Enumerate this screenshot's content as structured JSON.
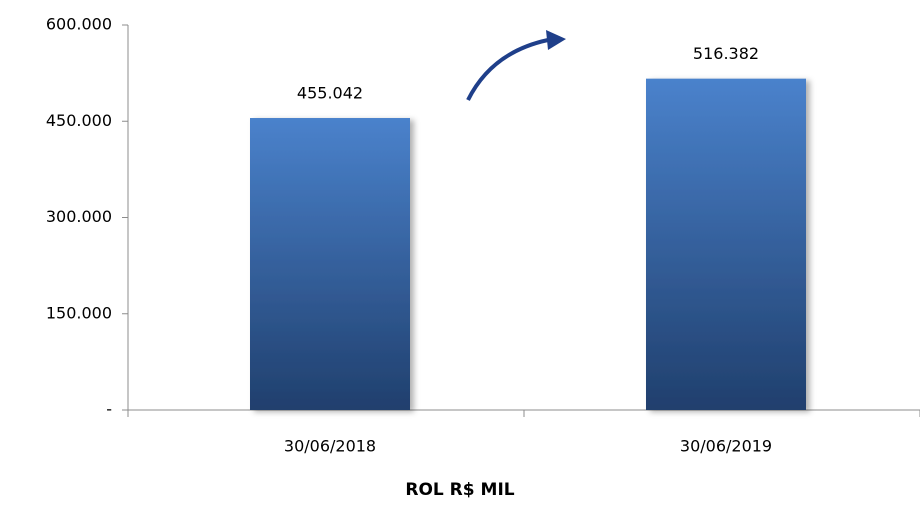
{
  "chart_data": {
    "type": "bar",
    "x_label": "ROL R$ MIL",
    "categories": [
      "30/06/2018",
      "30/06/2019"
    ],
    "values": [
      455042,
      516382
    ],
    "value_labels": [
      "455.042",
      "516.382"
    ],
    "color": "#3f6fb0",
    "ylim": [
      0,
      600000
    ],
    "yticks": [
      {
        "value": 0,
        "label": "-"
      },
      {
        "value": 150000,
        "label": "150.000"
      },
      {
        "value": 300000,
        "label": "300.000"
      },
      {
        "value": 450000,
        "label": "450.000"
      },
      {
        "value": 600000,
        "label": "600.000"
      }
    ],
    "grid": false
  }
}
